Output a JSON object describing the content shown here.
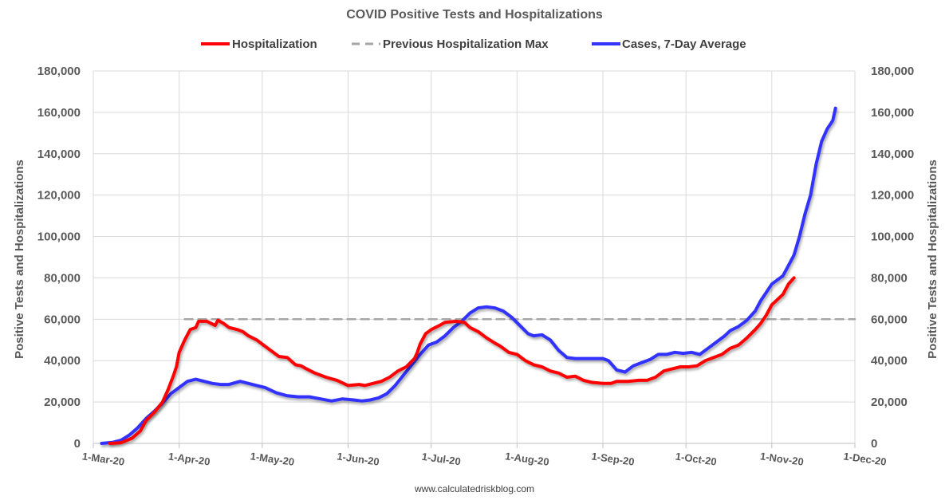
{
  "chart_data": {
    "type": "line",
    "title": "COVID Positive Tests and Hospitalizations",
    "ylabel_left": "Positive Tests and Hospitalizations",
    "ylabel_right": "Positive Tests and Hospitalizations",
    "footer": "www.calculatedriskblog.com",
    "ylim": [
      0,
      180000
    ],
    "y_ticks": [
      0,
      20000,
      40000,
      60000,
      80000,
      100000,
      120000,
      140000,
      160000,
      180000
    ],
    "y_tick_labels": [
      "0",
      "20,000",
      "40,000",
      "60,000",
      "80,000",
      "100,000",
      "120,000",
      "140,000",
      "160,000",
      "180,000"
    ],
    "xlim_days": [
      0,
      275
    ],
    "x_ticks": [
      {
        "label": "1-Mar-20",
        "day": 0
      },
      {
        "label": "1-Apr-20",
        "day": 31
      },
      {
        "label": "1-May-20",
        "day": 61
      },
      {
        "label": "1-Jun-20",
        "day": 92
      },
      {
        "label": "1-Jul-20",
        "day": 122
      },
      {
        "label": "1-Aug-20",
        "day": 153
      },
      {
        "label": "1-Sep-20",
        "day": 184
      },
      {
        "label": "1-Oct-20",
        "day": 214
      },
      {
        "label": "1-Nov-20",
        "day": 245
      },
      {
        "label": "1-Dec-20",
        "day": 275
      }
    ],
    "grid": true,
    "legend_position": "top",
    "series": [
      {
        "name": "Hospitalization",
        "color": "#ff0000",
        "style": "solid",
        "points": [
          [
            6,
            0
          ],
          [
            10,
            300
          ],
          [
            14,
            2500
          ],
          [
            17,
            6000
          ],
          [
            19,
            11000
          ],
          [
            22,
            15000
          ],
          [
            25,
            20000
          ],
          [
            27,
            26000
          ],
          [
            29,
            33000
          ],
          [
            30,
            37000
          ],
          [
            31,
            44000
          ],
          [
            33,
            50000
          ],
          [
            35,
            55000
          ],
          [
            37,
            56000
          ],
          [
            38,
            59000
          ],
          [
            41,
            59000
          ],
          [
            44,
            57000
          ],
          [
            45,
            59500
          ],
          [
            47,
            58000
          ],
          [
            49,
            56000
          ],
          [
            52,
            55000
          ],
          [
            54,
            54000
          ],
          [
            56,
            52000
          ],
          [
            59,
            50000
          ],
          [
            62,
            47000
          ],
          [
            64,
            45000
          ],
          [
            67,
            42000
          ],
          [
            70,
            41500
          ],
          [
            73,
            38000
          ],
          [
            75,
            37500
          ],
          [
            77,
            36000
          ],
          [
            80,
            34000
          ],
          [
            84,
            32000
          ],
          [
            88,
            30500
          ],
          [
            92,
            28000
          ],
          [
            96,
            28500
          ],
          [
            98,
            28000
          ],
          [
            101,
            29000
          ],
          [
            104,
            30000
          ],
          [
            107,
            32000
          ],
          [
            110,
            35000
          ],
          [
            113,
            37000
          ],
          [
            116,
            41000
          ],
          [
            117,
            44000
          ],
          [
            118,
            48000
          ],
          [
            120,
            53000
          ],
          [
            122,
            55000
          ],
          [
            125,
            57000
          ],
          [
            127,
            58500
          ],
          [
            131,
            59000
          ],
          [
            134,
            58500
          ],
          [
            136,
            56000
          ],
          [
            139,
            54000
          ],
          [
            142,
            51000
          ],
          [
            145,
            48500
          ],
          [
            147,
            47000
          ],
          [
            150,
            44000
          ],
          [
            153,
            43000
          ],
          [
            156,
            40000
          ],
          [
            159,
            38000
          ],
          [
            162,
            37000
          ],
          [
            165,
            35000
          ],
          [
            168,
            34000
          ],
          [
            171,
            32000
          ],
          [
            174,
            32500
          ],
          [
            177,
            30500
          ],
          [
            180,
            29500
          ],
          [
            184,
            29000
          ],
          [
            187,
            29000
          ],
          [
            189,
            30000
          ],
          [
            193,
            30000
          ],
          [
            197,
            30500
          ],
          [
            200,
            30500
          ],
          [
            203,
            32000
          ],
          [
            206,
            35000
          ],
          [
            209,
            36000
          ],
          [
            212,
            37000
          ],
          [
            215,
            37000
          ],
          [
            218,
            37500
          ],
          [
            221,
            40000
          ],
          [
            224,
            41500
          ],
          [
            227,
            43000
          ],
          [
            230,
            46000
          ],
          [
            233,
            47500
          ],
          [
            236,
            51000
          ],
          [
            239,
            55000
          ],
          [
            241,
            58000
          ],
          [
            243,
            62000
          ],
          [
            245,
            67000
          ],
          [
            247,
            69500
          ],
          [
            249,
            72000
          ],
          [
            251,
            77000
          ],
          [
            253,
            80000
          ]
        ]
      },
      {
        "name": "Previous Hospitalization Max",
        "color": "#a6a6a6",
        "style": "dashed",
        "points": [
          [
            33,
            60000
          ],
          [
            275,
            60000
          ]
        ]
      },
      {
        "name": "Cases, 7-Day Average",
        "color": "#3333ff",
        "style": "solid",
        "points": [
          [
            3,
            0
          ],
          [
            7,
            500
          ],
          [
            10,
            1500
          ],
          [
            13,
            4000
          ],
          [
            16,
            7500
          ],
          [
            19,
            12000
          ],
          [
            22,
            15500
          ],
          [
            25,
            19500
          ],
          [
            28,
            24000
          ],
          [
            31,
            27000
          ],
          [
            34,
            30000
          ],
          [
            37,
            31000
          ],
          [
            40,
            30000
          ],
          [
            43,
            29000
          ],
          [
            46,
            28500
          ],
          [
            49,
            28500
          ],
          [
            53,
            30000
          ],
          [
            56,
            29000
          ],
          [
            59,
            28000
          ],
          [
            62,
            27000
          ],
          [
            66,
            24500
          ],
          [
            70,
            23000
          ],
          [
            74,
            22500
          ],
          [
            78,
            22500
          ],
          [
            82,
            21500
          ],
          [
            86,
            20500
          ],
          [
            90,
            21500
          ],
          [
            94,
            21000
          ],
          [
            97,
            20500
          ],
          [
            100,
            21000
          ],
          [
            103,
            22000
          ],
          [
            106,
            24000
          ],
          [
            109,
            28000
          ],
          [
            112,
            33000
          ],
          [
            115,
            38000
          ],
          [
            118,
            43000
          ],
          [
            121,
            47500
          ],
          [
            124,
            49000
          ],
          [
            127,
            52000
          ],
          [
            130,
            56000
          ],
          [
            133,
            59000
          ],
          [
            136,
            63000
          ],
          [
            139,
            65500
          ],
          [
            142,
            66000
          ],
          [
            145,
            65500
          ],
          [
            148,
            64000
          ],
          [
            151,
            61000
          ],
          [
            154,
            57000
          ],
          [
            157,
            53000
          ],
          [
            159,
            52000
          ],
          [
            162,
            52500
          ],
          [
            165,
            50000
          ],
          [
            168,
            45000
          ],
          [
            171,
            41500
          ],
          [
            174,
            41000
          ],
          [
            177,
            41000
          ],
          [
            180,
            41000
          ],
          [
            184,
            41000
          ],
          [
            186,
            40000
          ],
          [
            189,
            35500
          ],
          [
            192,
            34500
          ],
          [
            195,
            37500
          ],
          [
            198,
            39000
          ],
          [
            201,
            40500
          ],
          [
            204,
            43000
          ],
          [
            207,
            43000
          ],
          [
            210,
            44000
          ],
          [
            213,
            43500
          ],
          [
            216,
            44000
          ],
          [
            219,
            43000
          ],
          [
            222,
            46000
          ],
          [
            225,
            49000
          ],
          [
            228,
            52000
          ],
          [
            230,
            54500
          ],
          [
            233,
            56500
          ],
          [
            236,
            59500
          ],
          [
            239,
            64000
          ],
          [
            241,
            69000
          ],
          [
            243,
            73000
          ],
          [
            245,
            77000
          ],
          [
            247,
            79000
          ],
          [
            249,
            81000
          ],
          [
            251,
            86000
          ],
          [
            253,
            91000
          ],
          [
            255,
            100000
          ],
          [
            257,
            111000
          ],
          [
            259,
            120000
          ],
          [
            261,
            135000
          ],
          [
            263,
            146000
          ],
          [
            265,
            152000
          ],
          [
            267,
            156000
          ],
          [
            268,
            162000
          ]
        ]
      }
    ]
  }
}
